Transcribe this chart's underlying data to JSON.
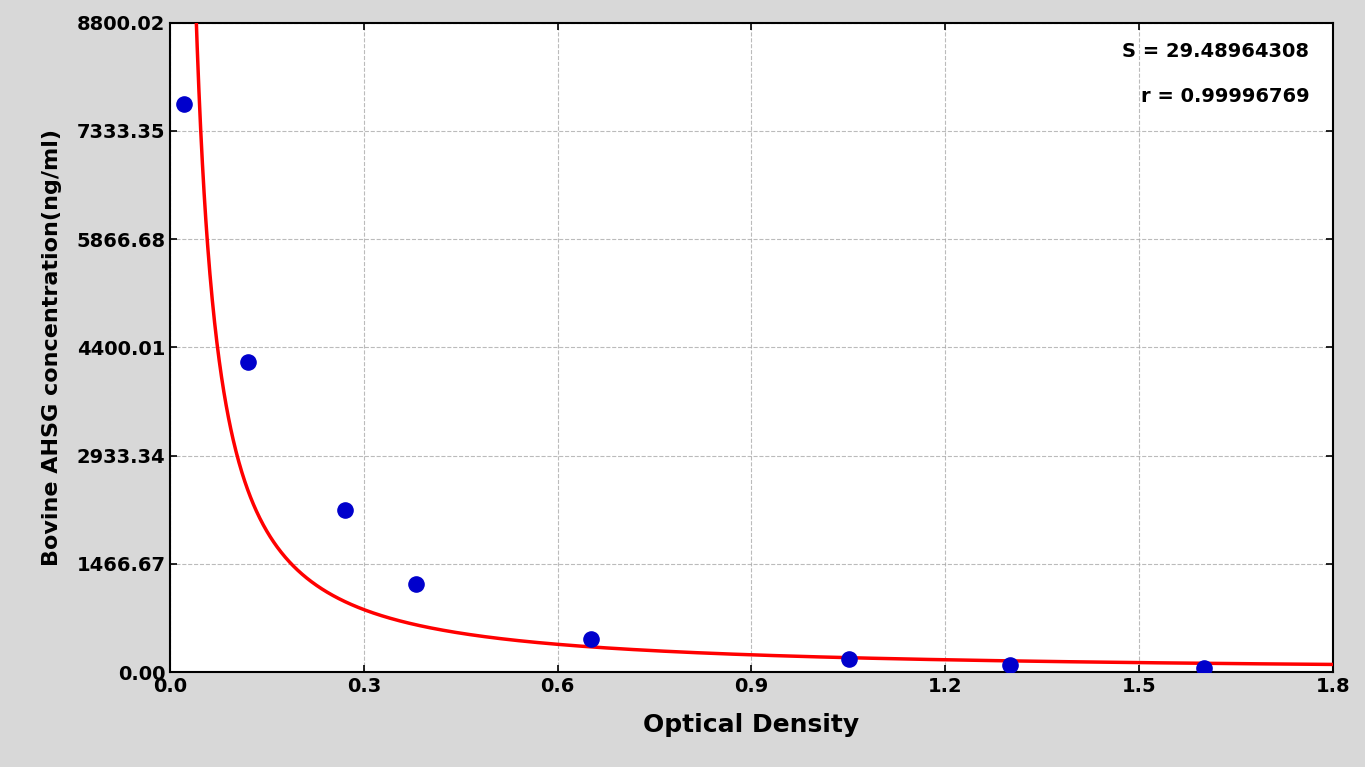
{
  "x_data": [
    0.021,
    0.121,
    0.271,
    0.381,
    0.651,
    1.051,
    1.301,
    1.601
  ],
  "y_data": [
    7700,
    4200,
    2200,
    1200,
    450,
    180,
    100,
    50
  ],
  "curve_S": 29.48964308,
  "curve_r": 0.99996769,
  "yticks": [
    0.0,
    1466.67,
    2933.34,
    4400.01,
    5866.68,
    7333.35,
    8800.02
  ],
  "ytick_labels": [
    "0.00",
    "1466.67",
    "2933.34",
    "4400.01",
    "5866.68",
    "7333.35",
    "8800.02"
  ],
  "xticks": [
    0.0,
    0.3,
    0.6,
    0.9,
    1.2,
    1.5,
    1.8
  ],
  "xtick_labels": [
    "0.0",
    "0.3",
    "0.6",
    "0.9",
    "1.2",
    "1.5",
    "1.8"
  ],
  "xlabel": "Optical Density",
  "ylabel": "Bovine AHSG concentration(ng/ml)",
  "xlim": [
    0.0,
    1.8
  ],
  "ylim": [
    0.0,
    8800.02
  ],
  "grid_color": "#aaaaaa",
  "curve_color": "#ff0000",
  "dot_color": "#0000cc",
  "bg_color": "#d8d8d8",
  "plot_bg_color": "#ffffff",
  "annotation_S": "S = 29.48964308",
  "annotation_r": "r = 0.99996769"
}
